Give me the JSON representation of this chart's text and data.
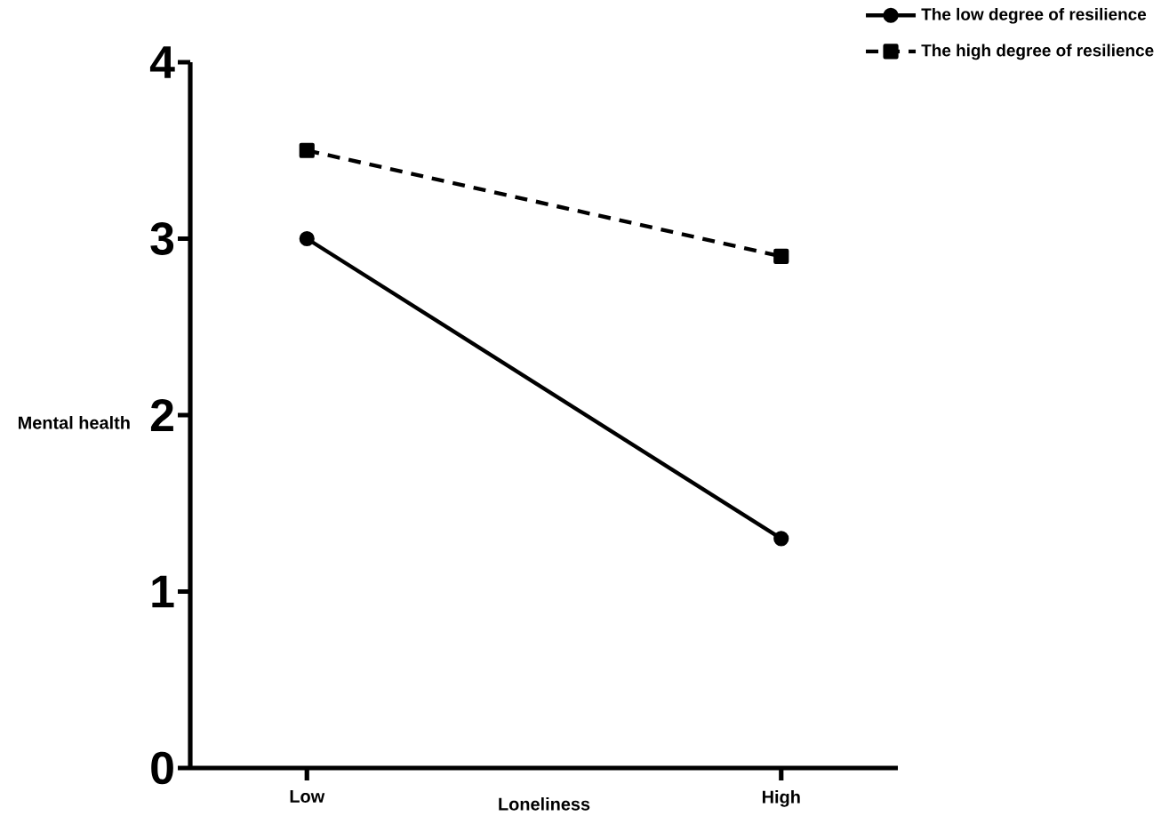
{
  "chart_data": {
    "type": "line",
    "xlabel": "Loneliness",
    "ylabel": "Mental health",
    "categories": [
      "Low",
      "High"
    ],
    "ylim": [
      0,
      4
    ],
    "yticks": [
      0,
      1,
      2,
      3,
      4
    ],
    "legend": "top right",
    "series": [
      {
        "name": "The low degree of resilience",
        "color": "#000000",
        "values": [
          3.0,
          1.3
        ],
        "marker": "circle",
        "line_style": "solid"
      },
      {
        "name": "The high degree of resilience",
        "color": "#000000",
        "values": [
          3.5,
          2.9
        ],
        "marker": "square",
        "line_style": "dashed"
      }
    ]
  }
}
